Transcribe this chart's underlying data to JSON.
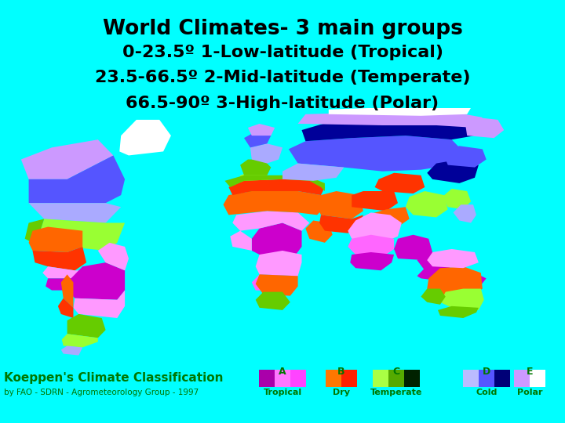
{
  "background_color": "#00FFFF",
  "title_line1": "World Climates- 3 main groups",
  "title_line2": "0-23.5º 1-Low-latitude (Tropical)",
  "title_line3": "23.5-66.5º 2-Mid-latitude (Temperate)",
  "title_line4": "66.5-90º 3-High-latitude (Polar)",
  "title_fontsize": 19,
  "subtitle_fontsize": 16,
  "title_color": "#000000",
  "bottom_left_label1": "Koeppen's Climate Classification",
  "bottom_left_label2": "by FAO - SDRN - Agrometeorology Group - 1997",
  "bottom_label_color": "#007700",
  "legend_categories": [
    "A",
    "B",
    "C",
    "D",
    "E"
  ],
  "legend_labels": [
    "Tropical",
    "Dry",
    "Temperate",
    "Cold",
    "Polar"
  ],
  "legend_colors_A": [
    "#AA00AA",
    "#FF88FF",
    "#FF44FF"
  ],
  "legend_colors_B": [
    "#FF7700",
    "#FF2200"
  ],
  "legend_colors_C": [
    "#AAFF44",
    "#55AA00",
    "#002200"
  ],
  "legend_colors_D": [
    "#BBBBFF",
    "#5555FF",
    "#000077"
  ],
  "legend_colors_E": [
    "#BB88FF",
    "#FFFFFF"
  ],
  "legend_label_color": "#007700",
  "ocean_color": "#00FFFF",
  "figsize": [
    7.2,
    5.4
  ],
  "dpi": 100
}
